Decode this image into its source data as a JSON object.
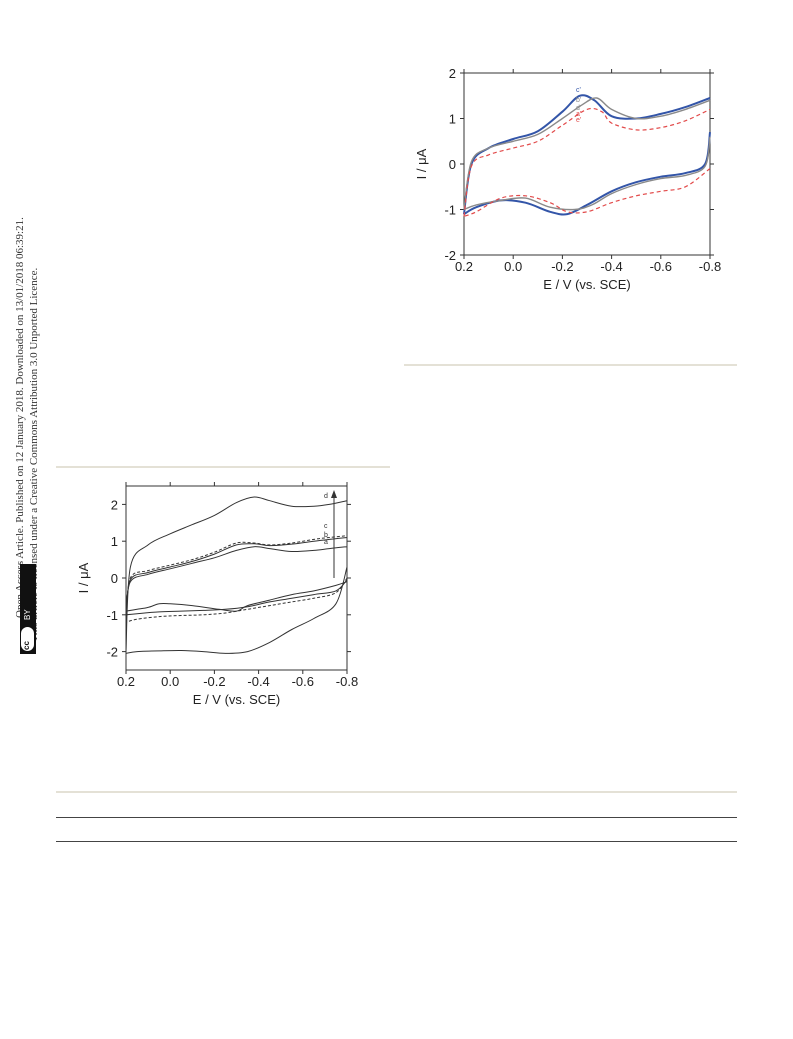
{
  "side_note": {
    "line1": "Open Access Article. Published on 12 January 2018. Downloaded on 13/01/2018 06:39:21.",
    "line2": "This article is licensed under a Creative Commons Attribution 3.0 Unported Licence.",
    "badge_cc": "cc",
    "badge_by": "BY"
  },
  "chart_data": [
    {
      "type": "line",
      "xlabel": "E / V (vs. SCE)",
      "ylabel": "I / μA",
      "xlim": [
        0.2,
        -0.8
      ],
      "ylim": [
        -2,
        2
      ],
      "x_ticks": [
        "0.2",
        "0.0",
        "-0.2",
        "-0.4",
        "-0.6",
        "-0.8"
      ],
      "y_ticks": [
        "2",
        "1",
        "0",
        "-1",
        "-2"
      ],
      "curve_labels": [
        "c'",
        "b'",
        "d'",
        "a'",
        "e'"
      ],
      "colors": {
        "c": "#3355a8",
        "b": "#8a8a8a",
        "a": "#e24a4a",
        "d": "#444444"
      },
      "series": [
        {
          "name": "c'",
          "forward": [
            [
              0.2,
              -1.1
            ],
            [
              0.17,
              0.0
            ],
            [
              0.1,
              0.35
            ],
            [
              0.0,
              0.55
            ],
            [
              -0.1,
              0.72
            ],
            [
              -0.2,
              1.15
            ],
            [
              -0.27,
              1.5
            ],
            [
              -0.33,
              1.4
            ],
            [
              -0.4,
              1.05
            ],
            [
              -0.5,
              1.0
            ],
            [
              -0.6,
              1.1
            ],
            [
              -0.7,
              1.25
            ],
            [
              -0.8,
              1.45
            ]
          ],
          "reverse": [
            [
              -0.8,
              0.7
            ],
            [
              -0.78,
              0.0
            ],
            [
              -0.7,
              -0.2
            ],
            [
              -0.6,
              -0.28
            ],
            [
              -0.5,
              -0.4
            ],
            [
              -0.4,
              -0.6
            ],
            [
              -0.3,
              -0.9
            ],
            [
              -0.22,
              -1.1
            ],
            [
              -0.15,
              -1.05
            ],
            [
              -0.05,
              -0.85
            ],
            [
              0.05,
              -0.8
            ],
            [
              0.15,
              -0.95
            ],
            [
              0.2,
              -1.1
            ]
          ]
        },
        {
          "name": "b'",
          "forward": [
            [
              0.2,
              -1.0
            ],
            [
              0.17,
              0.05
            ],
            [
              0.1,
              0.35
            ],
            [
              0.0,
              0.5
            ],
            [
              -0.1,
              0.65
            ],
            [
              -0.2,
              1.0
            ],
            [
              -0.28,
              1.3
            ],
            [
              -0.34,
              1.45
            ],
            [
              -0.4,
              1.2
            ],
            [
              -0.5,
              1.0
            ],
            [
              -0.6,
              1.05
            ],
            [
              -0.7,
              1.2
            ],
            [
              -0.8,
              1.4
            ]
          ],
          "reverse": [
            [
              -0.8,
              0.6
            ],
            [
              -0.78,
              -0.05
            ],
            [
              -0.7,
              -0.25
            ],
            [
              -0.6,
              -0.32
            ],
            [
              -0.5,
              -0.45
            ],
            [
              -0.4,
              -0.65
            ],
            [
              -0.32,
              -0.9
            ],
            [
              -0.25,
              -1.0
            ],
            [
              -0.15,
              -0.95
            ],
            [
              -0.05,
              -0.75
            ],
            [
              0.05,
              -0.8
            ],
            [
              0.15,
              -0.9
            ],
            [
              0.2,
              -1.0
            ]
          ]
        },
        {
          "name": "a'",
          "forward": [
            [
              0.2,
              -1.15
            ],
            [
              0.17,
              -0.05
            ],
            [
              0.1,
              0.2
            ],
            [
              0.0,
              0.35
            ],
            [
              -0.1,
              0.5
            ],
            [
              -0.2,
              0.85
            ],
            [
              -0.3,
              1.2
            ],
            [
              -0.36,
              1.15
            ],
            [
              -0.4,
              0.9
            ],
            [
              -0.5,
              0.75
            ],
            [
              -0.6,
              0.8
            ],
            [
              -0.7,
              0.95
            ],
            [
              -0.8,
              1.2
            ]
          ],
          "reverse": [
            [
              -0.8,
              -0.1
            ],
            [
              -0.7,
              -0.5
            ],
            [
              -0.6,
              -0.6
            ],
            [
              -0.5,
              -0.7
            ],
            [
              -0.4,
              -0.85
            ],
            [
              -0.3,
              -1.05
            ],
            [
              -0.22,
              -1.05
            ],
            [
              -0.15,
              -0.85
            ],
            [
              -0.05,
              -0.7
            ],
            [
              0.05,
              -0.75
            ],
            [
              0.15,
              -1.05
            ],
            [
              0.2,
              -1.15
            ]
          ]
        }
      ]
    },
    {
      "type": "line",
      "xlabel": "E / V (vs. SCE)",
      "ylabel": "I / μA",
      "xlim": [
        0.2,
        -0.8
      ],
      "ylim": [
        -2.5,
        2.5
      ],
      "x_ticks": [
        "0.2",
        "0.0",
        "-0.2",
        "-0.4",
        "-0.6",
        "-0.8"
      ],
      "y_ticks": [
        "2",
        "1",
        "0",
        "-1",
        "-2"
      ],
      "curve_labels": [
        "d",
        "c",
        "b",
        "a"
      ],
      "series": [
        {
          "name": "d",
          "forward": [
            [
              0.2,
              -2.0
            ],
            [
              0.18,
              0.3
            ],
            [
              0.1,
              0.9
            ],
            [
              0.0,
              1.2
            ],
            [
              -0.1,
              1.45
            ],
            [
              -0.2,
              1.7
            ],
            [
              -0.3,
              2.05
            ],
            [
              -0.38,
              2.2
            ],
            [
              -0.45,
              2.1
            ],
            [
              -0.55,
              1.95
            ],
            [
              -0.65,
              1.95
            ],
            [
              -0.72,
              2.0
            ],
            [
              -0.8,
              2.1
            ]
          ],
          "reverse": [
            [
              -0.8,
              0.3
            ],
            [
              -0.75,
              -0.7
            ],
            [
              -0.65,
              -1.1
            ],
            [
              -0.55,
              -1.4
            ],
            [
              -0.45,
              -1.75
            ],
            [
              -0.35,
              -2.0
            ],
            [
              -0.25,
              -2.05
            ],
            [
              -0.15,
              -2.0
            ],
            [
              -0.05,
              -1.97
            ],
            [
              0.05,
              -1.98
            ],
            [
              0.15,
              -2.0
            ],
            [
              0.2,
              -2.05
            ]
          ]
        },
        {
          "name": "c",
          "dashed": true,
          "forward": [
            [
              0.2,
              -1.1
            ],
            [
              0.18,
              0.0
            ],
            [
              0.1,
              0.2
            ],
            [
              0.0,
              0.35
            ],
            [
              -0.1,
              0.5
            ],
            [
              -0.2,
              0.7
            ],
            [
              -0.3,
              0.95
            ],
            [
              -0.38,
              0.95
            ],
            [
              -0.45,
              0.9
            ],
            [
              -0.55,
              0.95
            ],
            [
              -0.65,
              1.05
            ],
            [
              -0.72,
              1.1
            ],
            [
              -0.8,
              1.15
            ]
          ],
          "reverse": [
            [
              -0.8,
              0.0
            ],
            [
              -0.75,
              -0.4
            ],
            [
              -0.65,
              -0.55
            ],
            [
              -0.55,
              -0.65
            ],
            [
              -0.45,
              -0.75
            ],
            [
              -0.35,
              -0.85
            ],
            [
              -0.25,
              -0.95
            ],
            [
              -0.15,
              -1.0
            ],
            [
              -0.05,
              -1.02
            ],
            [
              0.05,
              -1.05
            ],
            [
              0.15,
              -1.12
            ],
            [
              0.2,
              -1.2
            ]
          ]
        },
        {
          "name": "b",
          "forward": [
            [
              0.2,
              -1.0
            ],
            [
              0.18,
              -0.05
            ],
            [
              0.1,
              0.15
            ],
            [
              0.0,
              0.3
            ],
            [
              -0.1,
              0.45
            ],
            [
              -0.2,
              0.65
            ],
            [
              -0.3,
              0.9
            ],
            [
              -0.38,
              0.93
            ],
            [
              -0.45,
              0.88
            ],
            [
              -0.55,
              0.92
            ],
            [
              -0.65,
              1.0
            ],
            [
              -0.72,
              1.05
            ],
            [
              -0.8,
              1.1
            ]
          ],
          "reverse": [
            [
              -0.8,
              -0.05
            ],
            [
              -0.75,
              -0.35
            ],
            [
              -0.65,
              -0.45
            ],
            [
              -0.55,
              -0.55
            ],
            [
              -0.45,
              -0.65
            ],
            [
              -0.35,
              -0.78
            ],
            [
              -0.25,
              -0.85
            ],
            [
              -0.15,
              -0.88
            ],
            [
              -0.05,
              -0.9
            ],
            [
              0.05,
              -0.92
            ],
            [
              0.15,
              -0.97
            ],
            [
              0.2,
              -1.0
            ]
          ]
        },
        {
          "name": "a",
          "forward": [
            [
              0.2,
              -0.9
            ],
            [
              0.18,
              -0.1
            ],
            [
              0.1,
              0.1
            ],
            [
              0.0,
              0.25
            ],
            [
              -0.1,
              0.4
            ],
            [
              -0.2,
              0.55
            ],
            [
              -0.3,
              0.75
            ],
            [
              -0.38,
              0.85
            ],
            [
              -0.45,
              0.8
            ],
            [
              -0.55,
              0.72
            ],
            [
              -0.65,
              0.75
            ],
            [
              -0.72,
              0.8
            ],
            [
              -0.8,
              0.85
            ]
          ],
          "reverse": [
            [
              -0.8,
              -0.1
            ],
            [
              -0.75,
              -0.2
            ],
            [
              -0.65,
              -0.35
            ],
            [
              -0.55,
              -0.45
            ],
            [
              -0.45,
              -0.6
            ],
            [
              -0.35,
              -0.75
            ],
            [
              -0.3,
              -0.9
            ],
            [
              -0.22,
              -0.85
            ],
            [
              -0.1,
              -0.75
            ],
            [
              0.0,
              -0.7
            ],
            [
              0.05,
              -0.7
            ],
            [
              0.1,
              -0.8
            ],
            [
              0.15,
              -0.85
            ],
            [
              0.2,
              -0.9
            ]
          ]
        }
      ]
    }
  ]
}
